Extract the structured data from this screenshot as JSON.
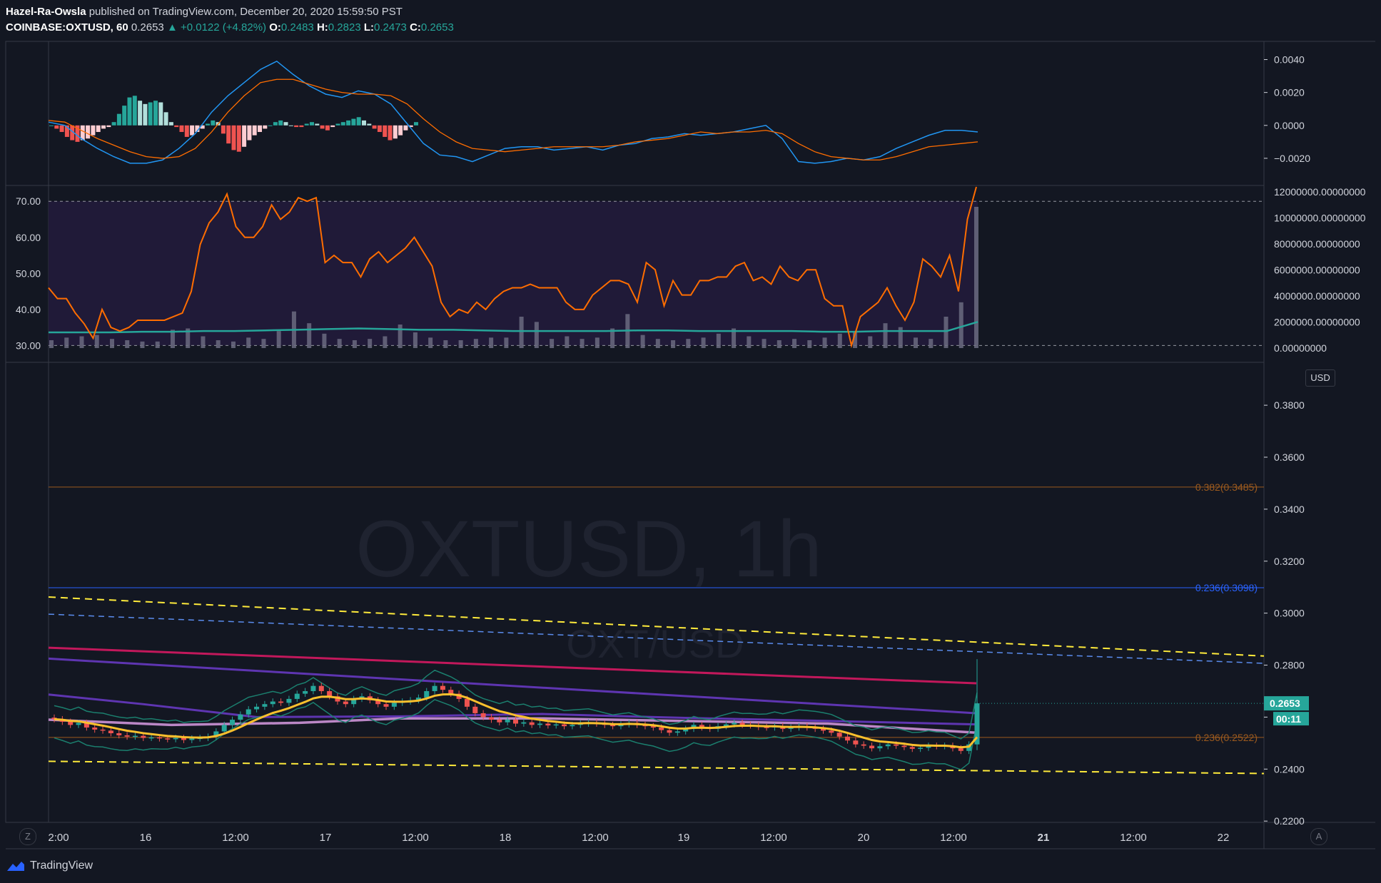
{
  "header": {
    "author": "Hazel-Ra-Owsla",
    "published": "published on TradingView.com, December 20, 2020 15:59:50 PST",
    "symbol": "COINBASE:OXTUSD, 60",
    "last": "0.2653",
    "change": "▲ +0.0122 (+4.82%)",
    "open_label": "O:",
    "open": "0.2483",
    "high_label": "H:",
    "high": "0.2823",
    "low_label": "L:",
    "low": "0.2473",
    "close_label": "C:",
    "close": "0.2653"
  },
  "buttons": {
    "zoom": "Z",
    "auto": "A",
    "currency": "USD"
  },
  "footer": {
    "brand": "TradingView"
  },
  "colors": {
    "background": "#131722",
    "grid_border": "#363a45",
    "axis_text": "#d1d4dc",
    "up": "#26a69a",
    "down": "#ef5350",
    "up_light": "#b2dfdb",
    "down_light": "#ffcdd2",
    "macd": "#2196f3",
    "signal": "#ff6d00",
    "rsi": "#ff6d00",
    "rsi_band": "#201a38",
    "volume": "#6b6b80",
    "volume_ma": "#26a69a",
    "fib_orange": "#9c5a1e",
    "fib_blue": "#2962ff",
    "channel_yellow": "#ffeb3b",
    "channel_blue": "#5b8def",
    "ma_red": "#c2185b",
    "ma_purple": "#5e35b1",
    "ma_pink": "#ce93d8",
    "ma_yellow": "#fbc02d",
    "bb": "#1b7f6e"
  },
  "chart_data": [
    {
      "type": "bar",
      "name": "MACD panel",
      "y_ticks": [
        "0.0040",
        "0.0020",
        "0.0000",
        "−0.0020"
      ],
      "ylim": [
        -0.003,
        0.0045
      ],
      "x": [
        0,
        4,
        8,
        12,
        16,
        20,
        24,
        28,
        32,
        36,
        40,
        44,
        48,
        52,
        56,
        60,
        64,
        68,
        72,
        76,
        80,
        84,
        88,
        92,
        96,
        100,
        104,
        108,
        112,
        116,
        120,
        124,
        128,
        132,
        136,
        140,
        144,
        148,
        152,
        156,
        160,
        164,
        168,
        172,
        176,
        180,
        184,
        188,
        192,
        196,
        200,
        204,
        208,
        212,
        216,
        220,
        224,
        228,
        232,
        236,
        240,
        244,
        248,
        252,
        256,
        260,
        264,
        268,
        272,
        276,
        280
      ],
      "histogram": [
        0,
        -0.0002,
        -0.0004,
        -0.0007,
        -0.0009,
        -0.001,
        -0.0009,
        -0.0008,
        -0.0006,
        -0.0004,
        -0.0002,
        -0.0001,
        0.0002,
        0.0007,
        0.0012,
        0.0017,
        0.0018,
        0.0015,
        0.0013,
        0.0014,
        0.0015,
        0.0014,
        0.0008,
        0.0002,
        -0.0001,
        -0.0004,
        -0.0007,
        -0.0006,
        -0.0004,
        -0.0002,
        0.0001,
        0.0003,
        0.0002,
        -0.0005,
        -0.0011,
        -0.0015,
        -0.0016,
        -0.0013,
        -0.0009,
        -0.0006,
        -0.0004,
        -0.0002,
        0,
        0.0002,
        0.0003,
        0.0002,
        0,
        -0.0001,
        -0.0001,
        0.0001,
        0.0002,
        0.0001,
        -0.0002,
        -0.0003,
        -0.0001,
        0.0001,
        0.0002,
        0.0003,
        0.0004,
        0.0005,
        0.0003,
        0.0001,
        -0.0002,
        -0.0004,
        -0.0007,
        -0.0009,
        -0.0008,
        -0.0006,
        -0.0003,
        -0.0001,
        0.0002
      ],
      "macd_line": [
        0.0002,
        0,
        -0.0008,
        -0.0014,
        -0.0019,
        -0.0023,
        -0.0023,
        -0.0021,
        -0.0014,
        -0.0005,
        0.0008,
        0.0018,
        0.0026,
        0.0034,
        0.0039,
        0.0031,
        0.0024,
        0.0019,
        0.0017,
        0.0021,
        0.0019,
        0.0013,
        0.0001,
        -0.0011,
        -0.0018,
        -0.0019,
        -0.0022,
        -0.0018,
        -0.0014,
        -0.0013,
        -0.0013,
        -0.0015,
        -0.0014,
        -0.0013,
        -0.0015,
        -0.0012,
        -0.0011,
        -0.0008,
        -0.0007,
        -0.0005,
        -0.0006,
        -0.0005,
        -0.0004,
        -0.0002,
        0,
        -0.0008,
        -0.0022,
        -0.0023,
        -0.0022,
        -0.002,
        -0.0021,
        -0.0019,
        -0.0014,
        -0.001,
        -0.0006,
        -0.0003,
        -0.0003,
        -0.0004
      ],
      "signal_line": [
        0.0003,
        0.0002,
        -0.0003,
        -0.0008,
        -0.0012,
        -0.0016,
        -0.0019,
        -0.002,
        -0.0019,
        -0.0014,
        -0.0004,
        0.0008,
        0.0018,
        0.0026,
        0.0028,
        0.0028,
        0.0025,
        0.0022,
        0.002,
        0.0019,
        0.0019,
        0.0018,
        0.0013,
        0.0004,
        -0.0004,
        -0.001,
        -0.0014,
        -0.0015,
        -0.0016,
        -0.0015,
        -0.0014,
        -0.0013,
        -0.0013,
        -0.0013,
        -0.0013,
        -0.0012,
        -0.001,
        -0.0009,
        -0.0008,
        -0.0006,
        -0.0004,
        -0.0005,
        -0.0004,
        -0.0004,
        -0.0003,
        -0.0005,
        -0.0011,
        -0.0016,
        -0.0019,
        -0.002,
        -0.0021,
        -0.0021,
        -0.0019,
        -0.0016,
        -0.0013,
        -0.0012,
        -0.0011,
        -0.001
      ]
    },
    {
      "type": "line",
      "name": "RSI and volume panel",
      "y_ticks_left": [
        "70.00",
        "60.00",
        "50.00",
        "40.00",
        "30.00"
      ],
      "y_ticks_right": [
        "12000000.00000000",
        "10000000.00000000",
        "8000000.00000000",
        "6000000.00000000",
        "4000000.00000000",
        "2000000.00000000",
        "0.00000000"
      ],
      "ylim": [
        27.5,
        74
      ],
      "band": [
        30,
        70
      ],
      "rsi": [
        46,
        43,
        43,
        39,
        36,
        32,
        40,
        35,
        34,
        35,
        37,
        37,
        37,
        37,
        38,
        39,
        45,
        58,
        64,
        67,
        72,
        63,
        60,
        60,
        63,
        69,
        65,
        67,
        71,
        70,
        71,
        53,
        55,
        53,
        53,
        49,
        54,
        56,
        53,
        55,
        57,
        60,
        56,
        52,
        42,
        38,
        40,
        39,
        42,
        40,
        43,
        45,
        46,
        46,
        47,
        46,
        46,
        46,
        42,
        40,
        40,
        44,
        46,
        48,
        48,
        47,
        42,
        53,
        51,
        41,
        48,
        44,
        44,
        48,
        48,
        49,
        49,
        52,
        53,
        48,
        49,
        47,
        52,
        49,
        48,
        51,
        51,
        43,
        41,
        41,
        30,
        38,
        40,
        42,
        46,
        41,
        37,
        42,
        54,
        52,
        49,
        55,
        45,
        65,
        74
      ],
      "volume_ma": [
        1.2,
        1.2,
        1.2,
        1.25,
        1.25,
        1.3,
        1.3,
        1.35,
        1.4,
        1.45,
        1.5,
        1.45,
        1.4,
        1.4,
        1.35,
        1.3,
        1.3,
        1.3,
        1.3,
        1.35,
        1.35,
        1.3,
        1.3,
        1.3,
        1.3,
        1.25,
        1.25,
        1.3,
        1.3,
        1.3,
        2.0
      ],
      "volume": [
        0.6,
        0.8,
        0.9,
        1.0,
        0.7,
        0.6,
        0.5,
        0.5,
        1.4,
        1.5,
        0.9,
        0.6,
        0.5,
        0.8,
        0.7,
        1.3,
        2.8,
        1.9,
        1.1,
        0.7,
        0.6,
        0.7,
        0.9,
        1.8,
        1.2,
        0.8,
        0.6,
        0.6,
        0.7,
        0.8,
        0.8,
        2.4,
        2.0,
        0.7,
        0.9,
        0.7,
        0.8,
        1.5,
        2.6,
        1.0,
        0.7,
        0.6,
        0.7,
        0.8,
        1.1,
        1.5,
        0.9,
        0.7,
        0.6,
        0.7,
        0.6,
        0.8,
        1.1,
        1.2,
        0.9,
        1.9,
        1.6,
        0.8,
        0.7,
        2.4,
        3.5,
        10.8
      ]
    },
    {
      "type": "candlestick",
      "name": "Price panel",
      "watermark": "OXTUSD, 1h",
      "watermark_sub": "OXT/USD",
      "y_ticks": [
        "0.3800",
        "0.3600",
        "0.3400",
        "0.3200",
        "0.3000",
        "0.2800",
        "0.2600",
        "0.2400",
        "0.2200"
      ],
      "ylim": [
        0.2195,
        0.3965
      ],
      "x_ticks": [
        "2:00",
        "16",
        "12:00",
        "17",
        "12:00",
        "18",
        "12:00",
        "19",
        "12:00",
        "20",
        "12:00",
        "21",
        "12:00",
        "22"
      ],
      "x_tick_bold": [
        false,
        false,
        false,
        false,
        false,
        false,
        false,
        false,
        false,
        false,
        false,
        true,
        false,
        false
      ],
      "fib_levels": [
        {
          "label": "0.382(0.3485)",
          "value": 0.3485,
          "color": "#9c5a1e"
        },
        {
          "label": "0.236(0.3098)",
          "value": 0.3098,
          "color": "#2962ff"
        },
        {
          "label": "0.236(0.2522)",
          "value": 0.2522,
          "color": "#9c5a1e"
        }
      ],
      "last_price_label": "0.2653",
      "countdown_label": "00:11",
      "close": [
        0.2592,
        0.2582,
        0.257,
        0.2578,
        0.256,
        0.2552,
        0.2548,
        0.2538,
        0.253,
        0.2525,
        0.2528,
        0.252,
        0.2522,
        0.2518,
        0.2515,
        0.252,
        0.2512,
        0.2518,
        0.252,
        0.2525,
        0.2545,
        0.257,
        0.259,
        0.261,
        0.263,
        0.264,
        0.265,
        0.266,
        0.2655,
        0.267,
        0.269,
        0.27,
        0.272,
        0.27,
        0.268,
        0.266,
        0.265,
        0.267,
        0.268,
        0.2665,
        0.265,
        0.264,
        0.2655,
        0.266,
        0.2665,
        0.2675,
        0.27,
        0.272,
        0.2705,
        0.269,
        0.267,
        0.264,
        0.2615,
        0.26,
        0.259,
        0.258,
        0.259,
        0.2575,
        0.258,
        0.257,
        0.2575,
        0.2568,
        0.2572,
        0.2565,
        0.257,
        0.2575,
        0.258,
        0.2575,
        0.257,
        0.2565,
        0.2572,
        0.2578,
        0.257,
        0.2565,
        0.256,
        0.255,
        0.254,
        0.2545,
        0.2555,
        0.257,
        0.256,
        0.2555,
        0.2565,
        0.2572,
        0.2578,
        0.257,
        0.2568,
        0.2562,
        0.256,
        0.2565,
        0.2555,
        0.256,
        0.2565,
        0.256,
        0.2555,
        0.2548,
        0.254,
        0.2525,
        0.251,
        0.2495,
        0.249,
        0.248,
        0.2488,
        0.2495,
        0.249,
        0.2485,
        0.2478,
        0.2482,
        0.249,
        0.2488,
        0.249,
        0.248,
        0.247,
        0.2495,
        0.2653
      ]
    }
  ]
}
